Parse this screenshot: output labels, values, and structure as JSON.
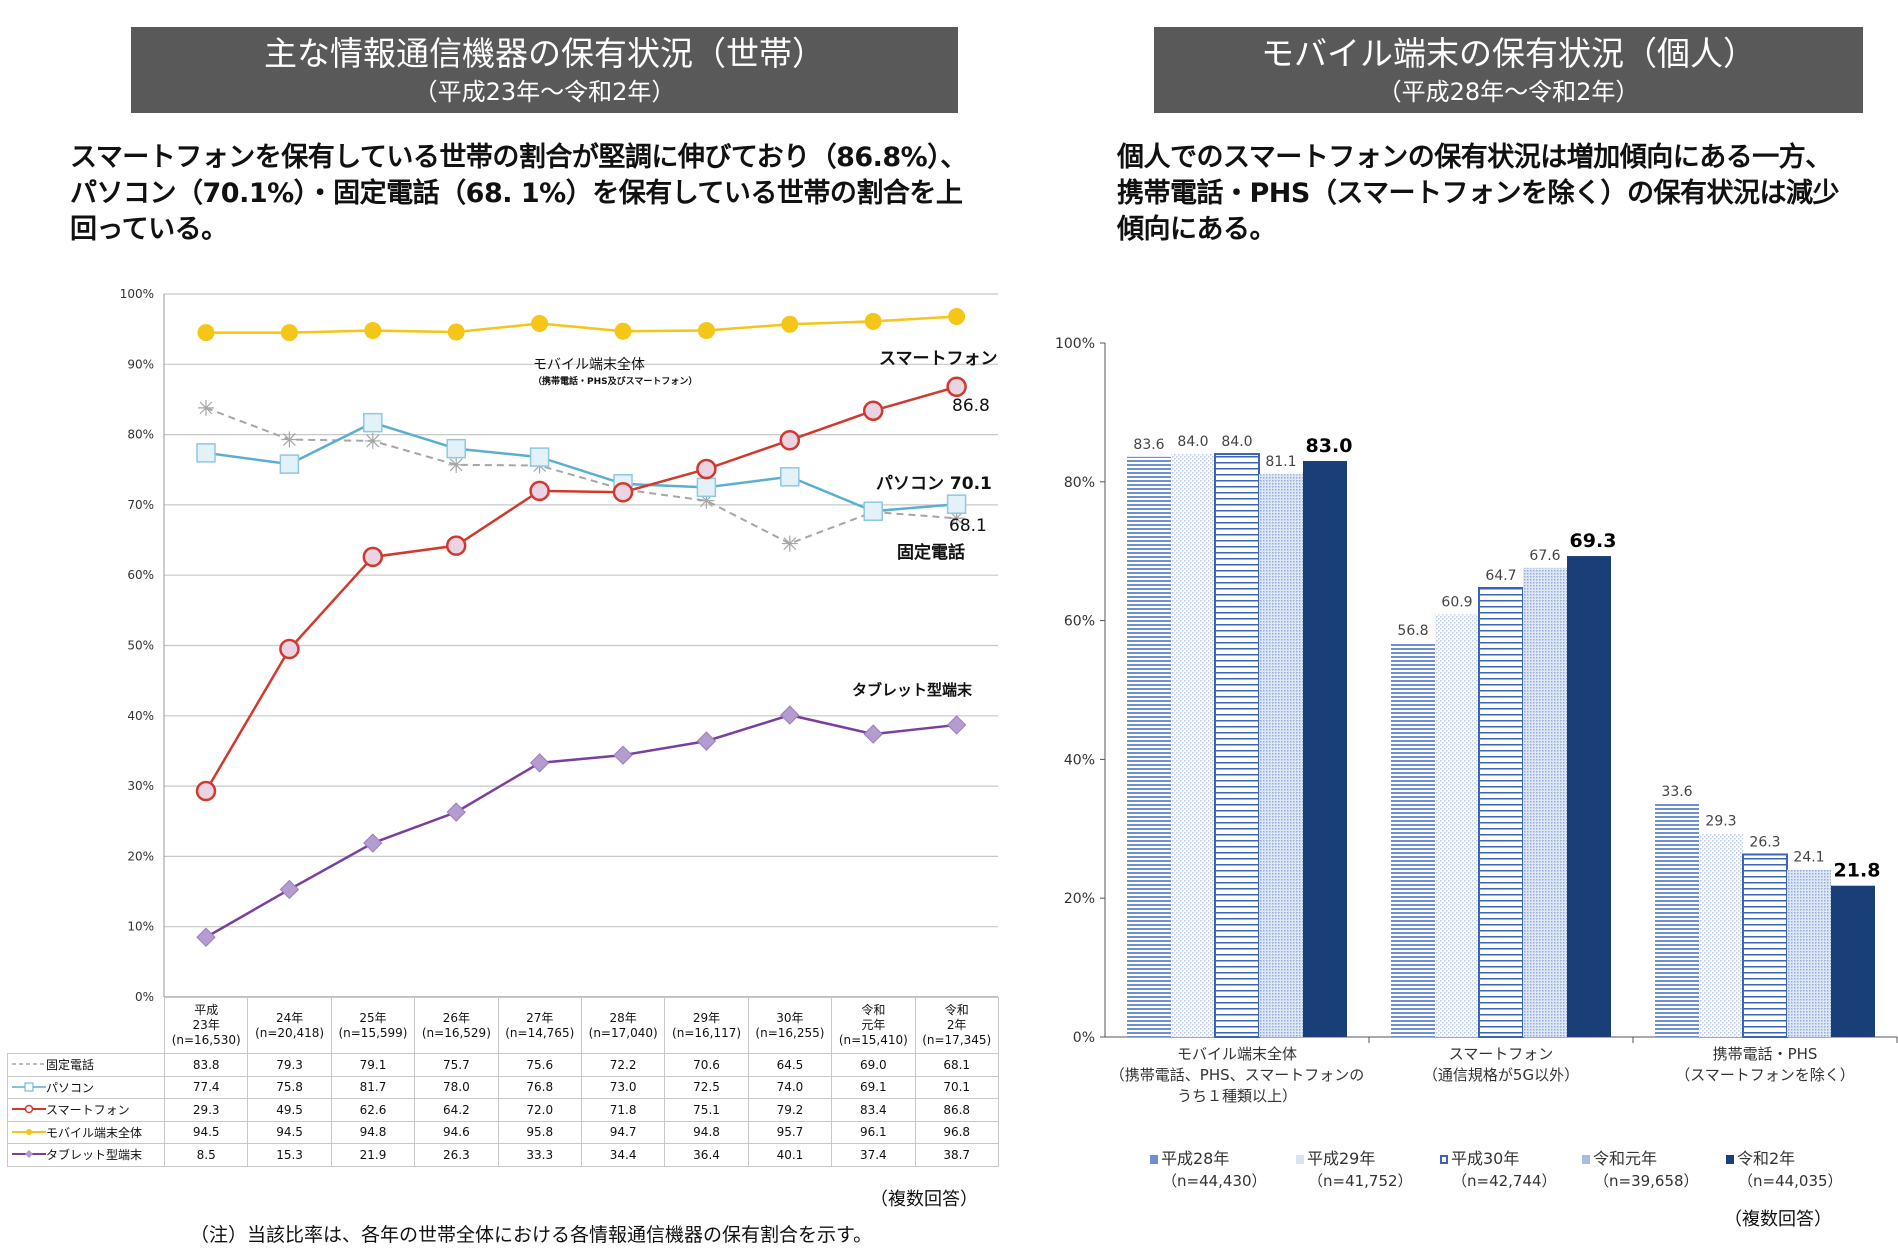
{
  "left": {
    "title": "主な情報通信機器の保有状況（世帯）",
    "subtitle": "（平成23年～令和2年）",
    "lead": [
      "スマートフォンを保有している世帯の割合が堅調に伸びており（86.8%）、",
      "パソコン（70.1%）・固定電話（68. 1%）を保有している世帯の割合を上",
      "回っている。"
    ],
    "note_multi": "（複数回答）",
    "footnote": "（注）当該比率は、各年の世帯全体における各情報通信機器の保有割合を示す。",
    "annotations": {
      "smartphone": "スマートフォン",
      "smartphone_value": "86.8",
      "mobile": "モバイル端末全体",
      "mobile_sub": "（携帯電話・PHS及びスマートフォン）",
      "pc": "パソコン 70.1",
      "landline_value": "68.1",
      "landline": "固定電話",
      "tablet": "タブレット型端末"
    }
  },
  "right": {
    "title": "モバイル端末の保有状況（個人）",
    "subtitle": "（平成28年～令和2年）",
    "lead": [
      "個人でのスマートフォンの保有状況は増加傾向にある一方、",
      "携帯電話・PHS（スマートフォンを除く）の保有状況は減少",
      "傾向にある。"
    ],
    "note_multi": "（複数回答）"
  },
  "chart_data": [
    {
      "type": "line",
      "ylim": [
        0,
        100
      ],
      "yticks": [
        "0%",
        "10%",
        "20%",
        "30%",
        "40%",
        "50%",
        "60%",
        "70%",
        "80%",
        "90%",
        "100%"
      ],
      "grid": true,
      "categories": [
        [
          "平成",
          "23年",
          "(n=16,530)"
        ],
        [
          "24年",
          "(n=20,418)"
        ],
        [
          "25年",
          "(n=15,599)"
        ],
        [
          "26年",
          "(n=16,529)"
        ],
        [
          "27年",
          "(n=14,765)"
        ],
        [
          "28年",
          "(n=17,040)"
        ],
        [
          "29年",
          "(n=16,117)"
        ],
        [
          "30年",
          "(n=16,255)"
        ],
        [
          "令和",
          "元年",
          "(n=15,410)"
        ],
        [
          "令和",
          "2年",
          "(n=17,345)"
        ]
      ],
      "series": [
        {
          "name": "固定電話",
          "color": "#a6a6a6",
          "values": [
            83.8,
            79.3,
            79.1,
            75.7,
            75.6,
            72.2,
            70.6,
            64.5,
            69.0,
            68.1
          ]
        },
        {
          "name": "パソコン",
          "color": "#5aaed2",
          "values": [
            77.4,
            75.8,
            81.7,
            78.0,
            76.8,
            73.0,
            72.5,
            74.0,
            69.1,
            70.1
          ]
        },
        {
          "name": "スマートフォン",
          "color": "#d0392b",
          "values": [
            29.3,
            49.5,
            62.6,
            64.2,
            72.0,
            71.8,
            75.1,
            79.2,
            83.4,
            86.8
          ]
        },
        {
          "name": "モバイル端末全体",
          "color": "#f5c518",
          "values": [
            94.5,
            94.5,
            94.8,
            94.6,
            95.8,
            94.7,
            94.8,
            95.7,
            96.1,
            96.8
          ]
        },
        {
          "name": "タブレット型端末",
          "color": "#7b3f9e",
          "values": [
            8.5,
            15.3,
            21.9,
            26.3,
            33.3,
            34.4,
            36.4,
            40.1,
            37.4,
            38.7
          ]
        }
      ]
    },
    {
      "type": "bar",
      "ylim": [
        0,
        100
      ],
      "yticks": [
        "0%",
        "20%",
        "40%",
        "60%",
        "80%",
        "100%"
      ],
      "categories": [
        [
          "モバイル端末全体",
          "（携帯電話、PHS、スマートフォンの",
          "うち１種類以上）"
        ],
        [
          "スマートフォン",
          "（通信規格が5G以外）"
        ],
        [
          "携帯電話・PHS",
          "（スマートフォンを除く）"
        ]
      ],
      "series": [
        {
          "name": "平成28年",
          "n": "（n=44,430）",
          "color": "#6f8fd0",
          "values": [
            83.6,
            56.8,
            33.6
          ]
        },
        {
          "name": "平成29年",
          "n": "（n=41,752）",
          "color": "#c8d6ee",
          "values": [
            84.0,
            60.9,
            29.3
          ]
        },
        {
          "name": "平成30年",
          "n": "（n=42,744）",
          "color": "#3b63b8",
          "values": [
            84.0,
            64.7,
            26.3
          ]
        },
        {
          "name": "令和元年",
          "n": "（n=39,658）",
          "color": "#a9bde3",
          "values": [
            81.1,
            67.6,
            24.1
          ]
        },
        {
          "name": "令和2年",
          "n": "（n=44,035）",
          "color": "#1a3f78",
          "values": [
            83.0,
            69.3,
            21.8
          ]
        }
      ]
    }
  ]
}
